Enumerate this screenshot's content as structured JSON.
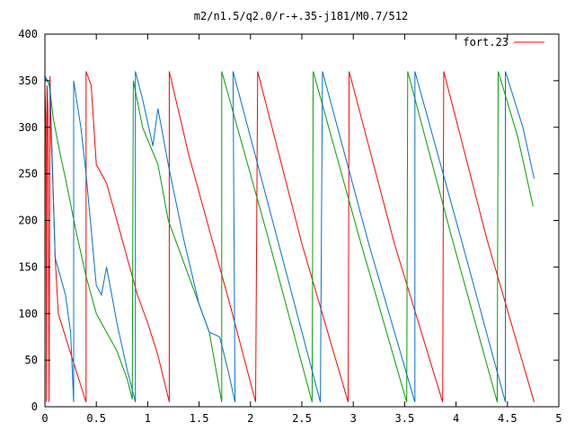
{
  "chart_data": {
    "type": "line",
    "title": "m2/n1.5/q2.0/r-+.35-j181/M0.7/512",
    "xlabel": "",
    "ylabel": "",
    "xlim": [
      0,
      5
    ],
    "ylim": [
      0,
      400
    ],
    "xticks": [
      0,
      0.5,
      1,
      1.5,
      2,
      2.5,
      3,
      3.5,
      4,
      4.5,
      5
    ],
    "xtick_labels": [
      "0",
      "0.5",
      "1",
      "1.5",
      "2",
      "2.5",
      "3",
      "3.5",
      "4",
      "4.5",
      "5"
    ],
    "yticks": [
      0,
      50,
      100,
      150,
      200,
      250,
      300,
      350,
      400
    ],
    "ytick_labels": [
      "0",
      "50",
      "100",
      "150",
      "200",
      "250",
      "300",
      "350",
      "400"
    ],
    "grid": false,
    "legend": {
      "position": "top-right",
      "entries": [
        "fort.23"
      ]
    },
    "series": [
      {
        "name": "fort.23",
        "color": "#ff0000",
        "points": [
          [
            0.0,
            340
          ],
          [
            0.01,
            310
          ],
          [
            0.015,
            5
          ],
          [
            0.02,
            345
          ],
          [
            0.03,
            320
          ],
          [
            0.04,
            5
          ],
          [
            0.05,
            355
          ],
          [
            0.06,
            290
          ],
          [
            0.08,
            230
          ],
          [
            0.1,
            160
          ],
          [
            0.13,
            100
          ],
          [
            0.2,
            75
          ],
          [
            0.3,
            40
          ],
          [
            0.4,
            5
          ],
          [
            0.4,
            360
          ],
          [
            0.45,
            345
          ],
          [
            0.5,
            260
          ],
          [
            0.6,
            240
          ],
          [
            0.7,
            200
          ],
          [
            0.8,
            160
          ],
          [
            0.9,
            120
          ],
          [
            1.0,
            90
          ],
          [
            1.1,
            55
          ],
          [
            1.21,
            5
          ],
          [
            1.21,
            360
          ],
          [
            1.4,
            270
          ],
          [
            1.6,
            190
          ],
          [
            1.8,
            110
          ],
          [
            2.05,
            5
          ],
          [
            2.07,
            360
          ],
          [
            2.5,
            175
          ],
          [
            2.95,
            5
          ],
          [
            2.96,
            360
          ],
          [
            3.4,
            175
          ],
          [
            3.87,
            5
          ],
          [
            3.88,
            360
          ],
          [
            4.3,
            180
          ],
          [
            4.76,
            5
          ]
        ]
      },
      {
        "name": "",
        "color": "#00a000",
        "points": [
          [
            0.0,
            352
          ],
          [
            0.03,
            350
          ],
          [
            0.05,
            340
          ],
          [
            0.08,
            310
          ],
          [
            0.15,
            270
          ],
          [
            0.2,
            245
          ],
          [
            0.3,
            190
          ],
          [
            0.4,
            140
          ],
          [
            0.5,
            100
          ],
          [
            0.6,
            80
          ],
          [
            0.7,
            60
          ],
          [
            0.8,
            30
          ],
          [
            0.85,
            8
          ],
          [
            0.86,
            350
          ],
          [
            0.95,
            300
          ],
          [
            1.1,
            260
          ],
          [
            1.2,
            200
          ],
          [
            1.4,
            140
          ],
          [
            1.6,
            80
          ],
          [
            1.72,
            5
          ],
          [
            1.72,
            360
          ],
          [
            2.15,
            190
          ],
          [
            2.6,
            5
          ],
          [
            2.61,
            360
          ],
          [
            3.05,
            185
          ],
          [
            3.52,
            5
          ],
          [
            3.53,
            360
          ],
          [
            3.95,
            185
          ],
          [
            4.4,
            5
          ],
          [
            4.41,
            360
          ],
          [
            4.6,
            290
          ],
          [
            4.75,
            215
          ]
        ]
      },
      {
        "name": "",
        "color": "#0070d0",
        "points": [
          [
            0.0,
            355
          ],
          [
            0.05,
            345
          ],
          [
            0.1,
            160
          ],
          [
            0.2,
            120
          ],
          [
            0.25,
            80
          ],
          [
            0.28,
            5
          ],
          [
            0.28,
            350
          ],
          [
            0.35,
            300
          ],
          [
            0.4,
            250
          ],
          [
            0.5,
            130
          ],
          [
            0.55,
            120
          ],
          [
            0.6,
            150
          ],
          [
            0.65,
            120
          ],
          [
            0.7,
            90
          ],
          [
            0.8,
            40
          ],
          [
            0.88,
            5
          ],
          [
            0.88,
            360
          ],
          [
            0.95,
            330
          ],
          [
            1.05,
            280
          ],
          [
            1.1,
            320
          ],
          [
            1.2,
            260
          ],
          [
            1.35,
            180
          ],
          [
            1.5,
            110
          ],
          [
            1.6,
            80
          ],
          [
            1.7,
            75
          ],
          [
            1.78,
            40
          ],
          [
            1.85,
            5
          ],
          [
            1.83,
            360
          ],
          [
            2.25,
            185
          ],
          [
            2.68,
            5
          ],
          [
            2.7,
            360
          ],
          [
            3.15,
            175
          ],
          [
            3.6,
            5
          ],
          [
            3.6,
            360
          ],
          [
            4.05,
            180
          ],
          [
            4.48,
            5
          ],
          [
            4.48,
            360
          ],
          [
            4.65,
            300
          ],
          [
            4.76,
            245
          ]
        ]
      }
    ]
  }
}
